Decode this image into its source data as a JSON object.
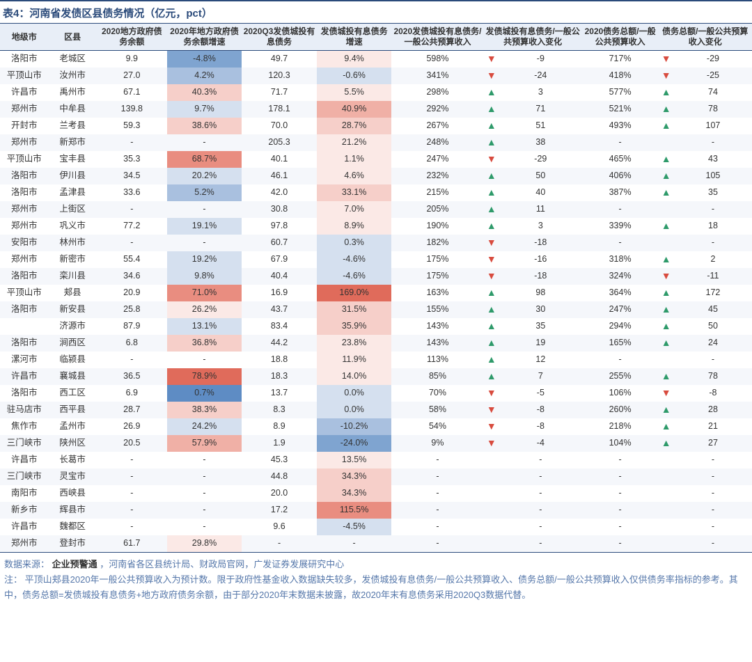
{
  "title": "表4：河南省发债区县债务情况（亿元，pct）",
  "columns": [
    "地级市",
    "区县",
    "2020地方政府债务余额",
    "2020年地方政府债务余额增速",
    "2020Q3发债城投有息债务",
    "发债城投有息债务增速",
    "2020发债城投有息债务/一般公共预算收入",
    "发债城投有息债务/一般公共预算收入变化",
    "2020债务总额/一般公共预算收入",
    "债务总额/一般公共预算收入变化"
  ],
  "heat": {
    "blue1": "#d5e0ef",
    "blue2": "#a9c0df",
    "blue3": "#7fa4d0",
    "blue4": "#5e8cc4",
    "red1": "#fbe9e6",
    "red2": "#f6cfc9",
    "red3": "#f0b0a6",
    "red4": "#e98d80",
    "red5": "#e06b5b",
    "none": ""
  },
  "arrow": {
    "up": "▲",
    "down": "▼"
  },
  "rows": [
    {
      "city": "洛阳市",
      "county": "老城区",
      "c1": "9.9",
      "c2": "-4.8%",
      "h2": "blue3",
      "c3": "49.7",
      "c4": "9.4%",
      "h4": "red1",
      "c5": "598%",
      "a1": "down",
      "c6": "-9",
      "c7": "717%",
      "a2": "down",
      "c8": "-29"
    },
    {
      "city": "平顶山市",
      "county": "汝州市",
      "c1": "27.0",
      "c2": "4.2%",
      "h2": "blue2",
      "c3": "120.3",
      "c4": "-0.6%",
      "h4": "blue1",
      "c5": "341%",
      "a1": "down",
      "c6": "-24",
      "c7": "418%",
      "a2": "down",
      "c8": "-25"
    },
    {
      "city": "许昌市",
      "county": "禹州市",
      "c1": "67.1",
      "c2": "40.3%",
      "h2": "red2",
      "c3": "71.7",
      "c4": "5.5%",
      "h4": "red1",
      "c5": "298%",
      "a1": "up",
      "c6": "3",
      "c7": "577%",
      "a2": "up",
      "c8": "74"
    },
    {
      "city": "郑州市",
      "county": "中牟县",
      "c1": "139.8",
      "c2": "9.7%",
      "h2": "blue1",
      "c3": "178.1",
      "c4": "40.9%",
      "h4": "red3",
      "c5": "292%",
      "a1": "up",
      "c6": "71",
      "c7": "521%",
      "a2": "up",
      "c8": "78"
    },
    {
      "city": "开封市",
      "county": "兰考县",
      "c1": "59.3",
      "c2": "38.6%",
      "h2": "red2",
      "c3": "70.0",
      "c4": "28.7%",
      "h4": "red2",
      "c5": "267%",
      "a1": "up",
      "c6": "51",
      "c7": "493%",
      "a2": "up",
      "c8": "107"
    },
    {
      "city": "郑州市",
      "county": "新郑市",
      "c1": "-",
      "c2": "-",
      "h2": "none",
      "c3": "205.3",
      "c4": "21.2%",
      "h4": "red1",
      "c5": "248%",
      "a1": "up",
      "c6": "38",
      "c7": "-",
      "a2": "",
      "c8": "-"
    },
    {
      "city": "平顶山市",
      "county": "宝丰县",
      "c1": "35.3",
      "c2": "68.7%",
      "h2": "red4",
      "c3": "40.1",
      "c4": "1.1%",
      "h4": "red1",
      "c5": "247%",
      "a1": "down",
      "c6": "-29",
      "c7": "465%",
      "a2": "up",
      "c8": "43"
    },
    {
      "city": "洛阳市",
      "county": "伊川县",
      "c1": "34.5",
      "c2": "20.2%",
      "h2": "blue1",
      "c3": "46.1",
      "c4": "4.6%",
      "h4": "red1",
      "c5": "232%",
      "a1": "up",
      "c6": "50",
      "c7": "406%",
      "a2": "up",
      "c8": "105"
    },
    {
      "city": "洛阳市",
      "county": "孟津县",
      "c1": "33.6",
      "c2": "5.2%",
      "h2": "blue2",
      "c3": "42.0",
      "c4": "33.1%",
      "h4": "red2",
      "c5": "215%",
      "a1": "up",
      "c6": "40",
      "c7": "387%",
      "a2": "up",
      "c8": "35"
    },
    {
      "city": "郑州市",
      "county": "上街区",
      "c1": "-",
      "c2": "-",
      "h2": "none",
      "c3": "30.8",
      "c4": "7.0%",
      "h4": "red1",
      "c5": "205%",
      "a1": "up",
      "c6": "11",
      "c7": "-",
      "a2": "",
      "c8": "-"
    },
    {
      "city": "郑州市",
      "county": "巩义市",
      "c1": "77.2",
      "c2": "19.1%",
      "h2": "blue1",
      "c3": "97.8",
      "c4": "8.9%",
      "h4": "red1",
      "c5": "190%",
      "a1": "up",
      "c6": "3",
      "c7": "339%",
      "a2": "up",
      "c8": "18"
    },
    {
      "city": "安阳市",
      "county": "林州市",
      "c1": "-",
      "c2": "-",
      "h2": "none",
      "c3": "60.7",
      "c4": "0.3%",
      "h4": "blue1",
      "c5": "182%",
      "a1": "down",
      "c6": "-18",
      "c7": "-",
      "a2": "",
      "c8": "-"
    },
    {
      "city": "郑州市",
      "county": "新密市",
      "c1": "55.4",
      "c2": "19.2%",
      "h2": "blue1",
      "c3": "67.9",
      "c4": "-4.6%",
      "h4": "blue1",
      "c5": "175%",
      "a1": "down",
      "c6": "-16",
      "c7": "318%",
      "a2": "up",
      "c8": "2"
    },
    {
      "city": "洛阳市",
      "county": "栾川县",
      "c1": "34.6",
      "c2": "9.8%",
      "h2": "blue1",
      "c3": "40.4",
      "c4": "-4.6%",
      "h4": "blue1",
      "c5": "175%",
      "a1": "down",
      "c6": "-18",
      "c7": "324%",
      "a2": "down",
      "c8": "-11"
    },
    {
      "city": "平顶山市",
      "county": "郏县",
      "c1": "20.9",
      "c2": "71.0%",
      "h2": "red4",
      "c3": "16.9",
      "c4": "169.0%",
      "h4": "red5",
      "c5": "163%",
      "a1": "up",
      "c6": "98",
      "c7": "364%",
      "a2": "up",
      "c8": "172"
    },
    {
      "city": "洛阳市",
      "county": "新安县",
      "c1": "25.8",
      "c2": "26.2%",
      "h2": "red1",
      "c3": "43.7",
      "c4": "31.5%",
      "h4": "red2",
      "c5": "155%",
      "a1": "up",
      "c6": "30",
      "c7": "247%",
      "a2": "up",
      "c8": "45"
    },
    {
      "city": "",
      "county": "济源市",
      "c1": "87.9",
      "c2": "13.1%",
      "h2": "blue1",
      "c3": "83.4",
      "c4": "35.9%",
      "h4": "red2",
      "c5": "143%",
      "a1": "up",
      "c6": "35",
      "c7": "294%",
      "a2": "up",
      "c8": "50"
    },
    {
      "city": "洛阳市",
      "county": "涧西区",
      "c1": "6.8",
      "c2": "36.8%",
      "h2": "red2",
      "c3": "44.2",
      "c4": "23.8%",
      "h4": "red1",
      "c5": "143%",
      "a1": "up",
      "c6": "19",
      "c7": "165%",
      "a2": "up",
      "c8": "24"
    },
    {
      "city": "漯河市",
      "county": "临颍县",
      "c1": "-",
      "c2": "-",
      "h2": "none",
      "c3": "18.8",
      "c4": "11.9%",
      "h4": "red1",
      "c5": "113%",
      "a1": "up",
      "c6": "12",
      "c7": "-",
      "a2": "",
      "c8": "-"
    },
    {
      "city": "许昌市",
      "county": "襄城县",
      "c1": "36.5",
      "c2": "78.9%",
      "h2": "red5",
      "c3": "18.3",
      "c4": "14.0%",
      "h4": "red1",
      "c5": "85%",
      "a1": "up",
      "c6": "7",
      "c7": "255%",
      "a2": "up",
      "c8": "78"
    },
    {
      "city": "洛阳市",
      "county": "西工区",
      "c1": "6.9",
      "c2": "0.7%",
      "h2": "blue4",
      "c3": "13.7",
      "c4": "0.0%",
      "h4": "blue1",
      "c5": "70%",
      "a1": "down",
      "c6": "-5",
      "c7": "106%",
      "a2": "down",
      "c8": "-8"
    },
    {
      "city": "驻马店市",
      "county": "西平县",
      "c1": "28.7",
      "c2": "38.3%",
      "h2": "red2",
      "c3": "8.3",
      "c4": "0.0%",
      "h4": "blue1",
      "c5": "58%",
      "a1": "down",
      "c6": "-8",
      "c7": "260%",
      "a2": "up",
      "c8": "28"
    },
    {
      "city": "焦作市",
      "county": "孟州市",
      "c1": "26.9",
      "c2": "24.2%",
      "h2": "blue1",
      "c3": "8.9",
      "c4": "-10.2%",
      "h4": "blue2",
      "c5": "54%",
      "a1": "down",
      "c6": "-8",
      "c7": "218%",
      "a2": "up",
      "c8": "21"
    },
    {
      "city": "三门峡市",
      "county": "陕州区",
      "c1": "20.5",
      "c2": "57.9%",
      "h2": "red3",
      "c3": "1.9",
      "c4": "-24.0%",
      "h4": "blue3",
      "c5": "9%",
      "a1": "down",
      "c6": "-4",
      "c7": "104%",
      "a2": "up",
      "c8": "27"
    },
    {
      "city": "许昌市",
      "county": "长葛市",
      "c1": "-",
      "c2": "-",
      "h2": "none",
      "c3": "45.3",
      "c4": "13.5%",
      "h4": "red1",
      "c5": "-",
      "a1": "",
      "c6": "-",
      "c7": "-",
      "a2": "",
      "c8": "-"
    },
    {
      "city": "三门峡市",
      "county": "灵宝市",
      "c1": "-",
      "c2": "-",
      "h2": "none",
      "c3": "44.8",
      "c4": "34.3%",
      "h4": "red2",
      "c5": "-",
      "a1": "",
      "c6": "-",
      "c7": "-",
      "a2": "",
      "c8": "-"
    },
    {
      "city": "南阳市",
      "county": "西峡县",
      "c1": "-",
      "c2": "-",
      "h2": "none",
      "c3": "20.0",
      "c4": "34.3%",
      "h4": "red2",
      "c5": "-",
      "a1": "",
      "c6": "-",
      "c7": "-",
      "a2": "",
      "c8": "-"
    },
    {
      "city": "新乡市",
      "county": "辉县市",
      "c1": "-",
      "c2": "-",
      "h2": "none",
      "c3": "17.2",
      "c4": "115.5%",
      "h4": "red4",
      "c5": "-",
      "a1": "",
      "c6": "-",
      "c7": "-",
      "a2": "",
      "c8": "-"
    },
    {
      "city": "许昌市",
      "county": "魏都区",
      "c1": "-",
      "c2": "-",
      "h2": "none",
      "c3": "9.6",
      "c4": "-4.5%",
      "h4": "blue1",
      "c5": "-",
      "a1": "",
      "c6": "-",
      "c7": "-",
      "a2": "",
      "c8": "-"
    },
    {
      "city": "郑州市",
      "county": "登封市",
      "c1": "61.7",
      "c2": "29.8%",
      "h2": "red1",
      "c3": "-",
      "c4": "-",
      "h4": "none",
      "c5": "-",
      "a1": "",
      "c6": "-",
      "c7": "-",
      "a2": "",
      "c8": "-"
    }
  ],
  "source_label": "数据来源：",
  "source_emph": "企业预警通",
  "source_rest": "，河南省各区县统计局、财政局官网，广发证券发展研究中心",
  "note_label": "注：",
  "note_text": "平顶山郏县2020年一般公共预算收入为预计数。限于政府性基金收入数据缺失较多，发债城投有息债务/一般公共预算收入、债务总额/一般公共预算收入仅供债务率指标的参考。其中，债务总额=发债城投有息债务+地方政府债务余额，由于部分2020年末数据未披露，故2020年末有息债务采用2020Q3数据代替。"
}
